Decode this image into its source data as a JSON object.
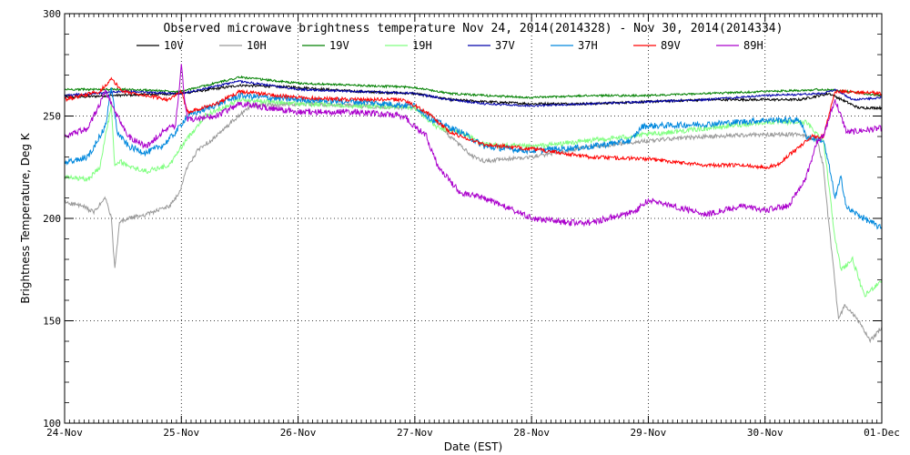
{
  "chart_data": {
    "type": "line",
    "title": "Observed microwave brightness temperature Nov 24, 2014(2014328) - Nov 30, 2014(2014334)",
    "xlabel": "Date (EST)",
    "ylabel": "Brightness Temperature, Deg K",
    "xlim": [
      0,
      7
    ],
    "ylim": [
      100,
      300
    ],
    "x_ticks": [
      {
        "x": 0,
        "label": "24-Nov"
      },
      {
        "x": 1,
        "label": "25-Nov"
      },
      {
        "x": 2,
        "label": "26-Nov"
      },
      {
        "x": 3,
        "label": "27-Nov"
      },
      {
        "x": 4,
        "label": "28-Nov"
      },
      {
        "x": 5,
        "label": "29-Nov"
      },
      {
        "x": 6,
        "label": "30-Nov"
      },
      {
        "x": 7,
        "label": "01-Dec"
      }
    ],
    "y_ticks": [
      100,
      150,
      200,
      250,
      300
    ],
    "grid": "dotted",
    "legend": "top",
    "series": [
      {
        "name": "10V",
        "color": "#000000",
        "noise": 0.6,
        "points": [
          [
            0,
            259
          ],
          [
            0.4,
            260
          ],
          [
            1,
            261
          ],
          [
            1.5,
            265
          ],
          [
            2,
            264
          ],
          [
            2.5,
            262
          ],
          [
            3,
            261
          ],
          [
            3.3,
            258
          ],
          [
            3.6,
            257
          ],
          [
            4,
            256
          ],
          [
            4.5,
            256
          ],
          [
            5,
            257
          ],
          [
            5.5,
            258
          ],
          [
            6,
            258
          ],
          [
            6.3,
            258
          ],
          [
            6.55,
            261
          ],
          [
            6.8,
            254
          ],
          [
            7,
            254
          ]
        ]
      },
      {
        "name": "10H",
        "color": "#999999",
        "noise": 1.0,
        "points": [
          [
            0,
            208
          ],
          [
            0.15,
            206
          ],
          [
            0.25,
            203
          ],
          [
            0.35,
            210
          ],
          [
            0.4,
            200
          ],
          [
            0.43,
            175
          ],
          [
            0.47,
            198
          ],
          [
            0.55,
            200
          ],
          [
            0.7,
            202
          ],
          [
            0.9,
            206
          ],
          [
            0.98,
            212
          ],
          [
            1.05,
            225
          ],
          [
            1.15,
            234
          ],
          [
            1.3,
            240
          ],
          [
            1.45,
            248
          ],
          [
            1.6,
            255
          ],
          [
            2,
            256
          ],
          [
            2.5,
            255
          ],
          [
            3,
            254
          ],
          [
            3.15,
            250
          ],
          [
            3.3,
            240
          ],
          [
            3.5,
            230
          ],
          [
            3.6,
            228
          ],
          [
            4,
            230
          ],
          [
            4.5,
            235
          ],
          [
            5,
            238
          ],
          [
            5.5,
            240
          ],
          [
            6,
            241
          ],
          [
            6.3,
            241
          ],
          [
            6.45,
            238
          ],
          [
            6.5,
            225
          ],
          [
            6.55,
            195
          ],
          [
            6.6,
            168
          ],
          [
            6.63,
            150
          ],
          [
            6.68,
            158
          ],
          [
            6.8,
            150
          ],
          [
            6.9,
            140
          ],
          [
            7,
            147
          ]
        ]
      },
      {
        "name": "19V",
        "color": "#008000",
        "noise": 0.5,
        "points": [
          [
            0,
            263
          ],
          [
            0.5,
            263
          ],
          [
            1,
            262
          ],
          [
            1.5,
            269
          ],
          [
            2,
            266
          ],
          [
            2.5,
            265
          ],
          [
            3,
            264
          ],
          [
            3.3,
            261
          ],
          [
            3.6,
            260
          ],
          [
            4,
            259
          ],
          [
            4.5,
            260
          ],
          [
            5,
            260
          ],
          [
            5.5,
            261
          ],
          [
            6,
            262
          ],
          [
            6.5,
            263
          ],
          [
            6.7,
            262
          ],
          [
            7,
            260
          ]
        ]
      },
      {
        "name": "19H",
        "color": "#80ff80",
        "noise": 1.2,
        "points": [
          [
            0,
            220
          ],
          [
            0.2,
            219
          ],
          [
            0.3,
            225
          ],
          [
            0.35,
            240
          ],
          [
            0.4,
            255
          ],
          [
            0.43,
            225
          ],
          [
            0.48,
            228
          ],
          [
            0.55,
            225
          ],
          [
            0.7,
            223
          ],
          [
            0.9,
            226
          ],
          [
            1,
            235
          ],
          [
            1.2,
            250
          ],
          [
            1.5,
            258
          ],
          [
            2,
            256
          ],
          [
            2.5,
            255
          ],
          [
            3,
            254
          ],
          [
            3.2,
            244
          ],
          [
            3.4,
            242
          ],
          [
            3.6,
            236
          ],
          [
            4,
            235
          ],
          [
            4.5,
            238
          ],
          [
            5,
            241
          ],
          [
            5.5,
            244
          ],
          [
            6,
            247
          ],
          [
            6.35,
            247
          ],
          [
            6.5,
            238
          ],
          [
            6.55,
            215
          ],
          [
            6.6,
            190
          ],
          [
            6.65,
            175
          ],
          [
            6.75,
            180
          ],
          [
            6.85,
            162
          ],
          [
            7,
            170
          ]
        ]
      },
      {
        "name": "37V",
        "color": "#0000aa",
        "noise": 0.5,
        "points": [
          [
            0,
            260
          ],
          [
            0.5,
            262
          ],
          [
            1,
            261
          ],
          [
            1.5,
            267
          ],
          [
            2,
            263
          ],
          [
            2.5,
            262
          ],
          [
            3,
            261
          ],
          [
            3.3,
            258
          ],
          [
            3.6,
            256
          ],
          [
            4,
            255
          ],
          [
            4.5,
            256
          ],
          [
            5,
            257
          ],
          [
            5.5,
            258
          ],
          [
            6,
            260
          ],
          [
            6.5,
            261
          ],
          [
            6.6,
            263
          ],
          [
            6.75,
            258
          ],
          [
            7,
            259
          ]
        ]
      },
      {
        "name": "37H",
        "color": "#0088dd",
        "noise": 1.5,
        "points": [
          [
            0,
            227
          ],
          [
            0.2,
            230
          ],
          [
            0.35,
            245
          ],
          [
            0.4,
            265
          ],
          [
            0.45,
            242
          ],
          [
            0.55,
            235
          ],
          [
            0.7,
            232
          ],
          [
            0.85,
            236
          ],
          [
            0.95,
            242
          ],
          [
            1.05,
            250
          ],
          [
            1.5,
            260
          ],
          [
            2,
            258
          ],
          [
            2.5,
            257
          ],
          [
            3,
            255
          ],
          [
            3.15,
            248
          ],
          [
            3.4,
            242
          ],
          [
            3.6,
            235
          ],
          [
            4,
            233
          ],
          [
            4.5,
            235
          ],
          [
            4.85,
            238
          ],
          [
            4.95,
            245
          ],
          [
            5.5,
            246
          ],
          [
            6,
            248
          ],
          [
            6.3,
            248
          ],
          [
            6.35,
            240
          ],
          [
            6.5,
            238
          ],
          [
            6.55,
            225
          ],
          [
            6.6,
            210
          ],
          [
            6.65,
            220
          ],
          [
            6.7,
            205
          ],
          [
            6.85,
            200
          ],
          [
            7,
            195
          ]
        ]
      },
      {
        "name": "89V",
        "color": "#ff0000",
        "noise": 0.9,
        "points": [
          [
            0,
            258
          ],
          [
            0.3,
            262
          ],
          [
            0.4,
            268
          ],
          [
            0.5,
            262
          ],
          [
            0.7,
            260
          ],
          [
            0.9,
            258
          ],
          [
            1,
            262
          ],
          [
            1.05,
            252
          ],
          [
            1.3,
            256
          ],
          [
            1.5,
            262
          ],
          [
            2,
            259
          ],
          [
            2.5,
            258
          ],
          [
            2.9,
            258
          ],
          [
            3.1,
            252
          ],
          [
            3.3,
            242
          ],
          [
            3.6,
            236
          ],
          [
            4,
            234
          ],
          [
            4.5,
            230
          ],
          [
            5,
            229
          ],
          [
            5.5,
            226
          ],
          [
            5.8,
            226
          ],
          [
            6,
            225
          ],
          [
            6.1,
            226
          ],
          [
            6.25,
            233
          ],
          [
            6.4,
            240
          ],
          [
            6.5,
            240
          ],
          [
            6.6,
            262
          ],
          [
            6.7,
            262
          ],
          [
            7,
            261
          ]
        ]
      },
      {
        "name": "89H",
        "color": "#aa00cc",
        "noise": 1.5,
        "points": [
          [
            0,
            240
          ],
          [
            0.2,
            244
          ],
          [
            0.35,
            262
          ],
          [
            0.45,
            250
          ],
          [
            0.55,
            240
          ],
          [
            0.7,
            235
          ],
          [
            0.85,
            243
          ],
          [
            0.95,
            245
          ],
          [
            1,
            274
          ],
          [
            1.05,
            248
          ],
          [
            1.3,
            250
          ],
          [
            1.5,
            256
          ],
          [
            2,
            252
          ],
          [
            2.5,
            252
          ],
          [
            2.9,
            250
          ],
          [
            3.1,
            240
          ],
          [
            3.2,
            225
          ],
          [
            3.4,
            212
          ],
          [
            3.6,
            210
          ],
          [
            3.8,
            205
          ],
          [
            4,
            200
          ],
          [
            4.3,
            198
          ],
          [
            4.5,
            198
          ],
          [
            4.8,
            202
          ],
          [
            4.9,
            204
          ],
          [
            5,
            209
          ],
          [
            5.5,
            202
          ],
          [
            5.8,
            206
          ],
          [
            6,
            204
          ],
          [
            6.2,
            206
          ],
          [
            6.35,
            220
          ],
          [
            6.45,
            238
          ],
          [
            6.5,
            240
          ],
          [
            6.6,
            258
          ],
          [
            6.7,
            242
          ],
          [
            7,
            244
          ]
        ]
      }
    ]
  }
}
